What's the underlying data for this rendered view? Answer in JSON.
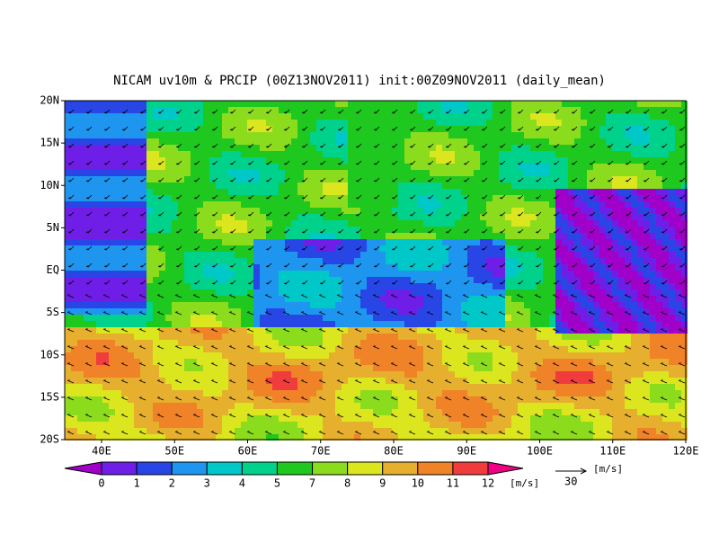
{
  "title": "NICAM uv10m & PRCIP (00Z13NOV2011) init:00Z09NOV2011 (daily_mean)",
  "lat_labels": [
    "20N",
    "15N",
    "10N",
    "5N",
    "EQ",
    "5S",
    "10S",
    "15S",
    "20S"
  ],
  "lon_labels": [
    "40E",
    "50E",
    "60E",
    "70E",
    "80E",
    "90E",
    "100E",
    "110E",
    "120E"
  ],
  "colorbar": {
    "levels": [
      0,
      1,
      2,
      3,
      4,
      5,
      7,
      8,
      9,
      10,
      11,
      12
    ],
    "unit": "[m/s]"
  },
  "reference_vector": {
    "value": 30,
    "unit": "[m/s]"
  }
}
